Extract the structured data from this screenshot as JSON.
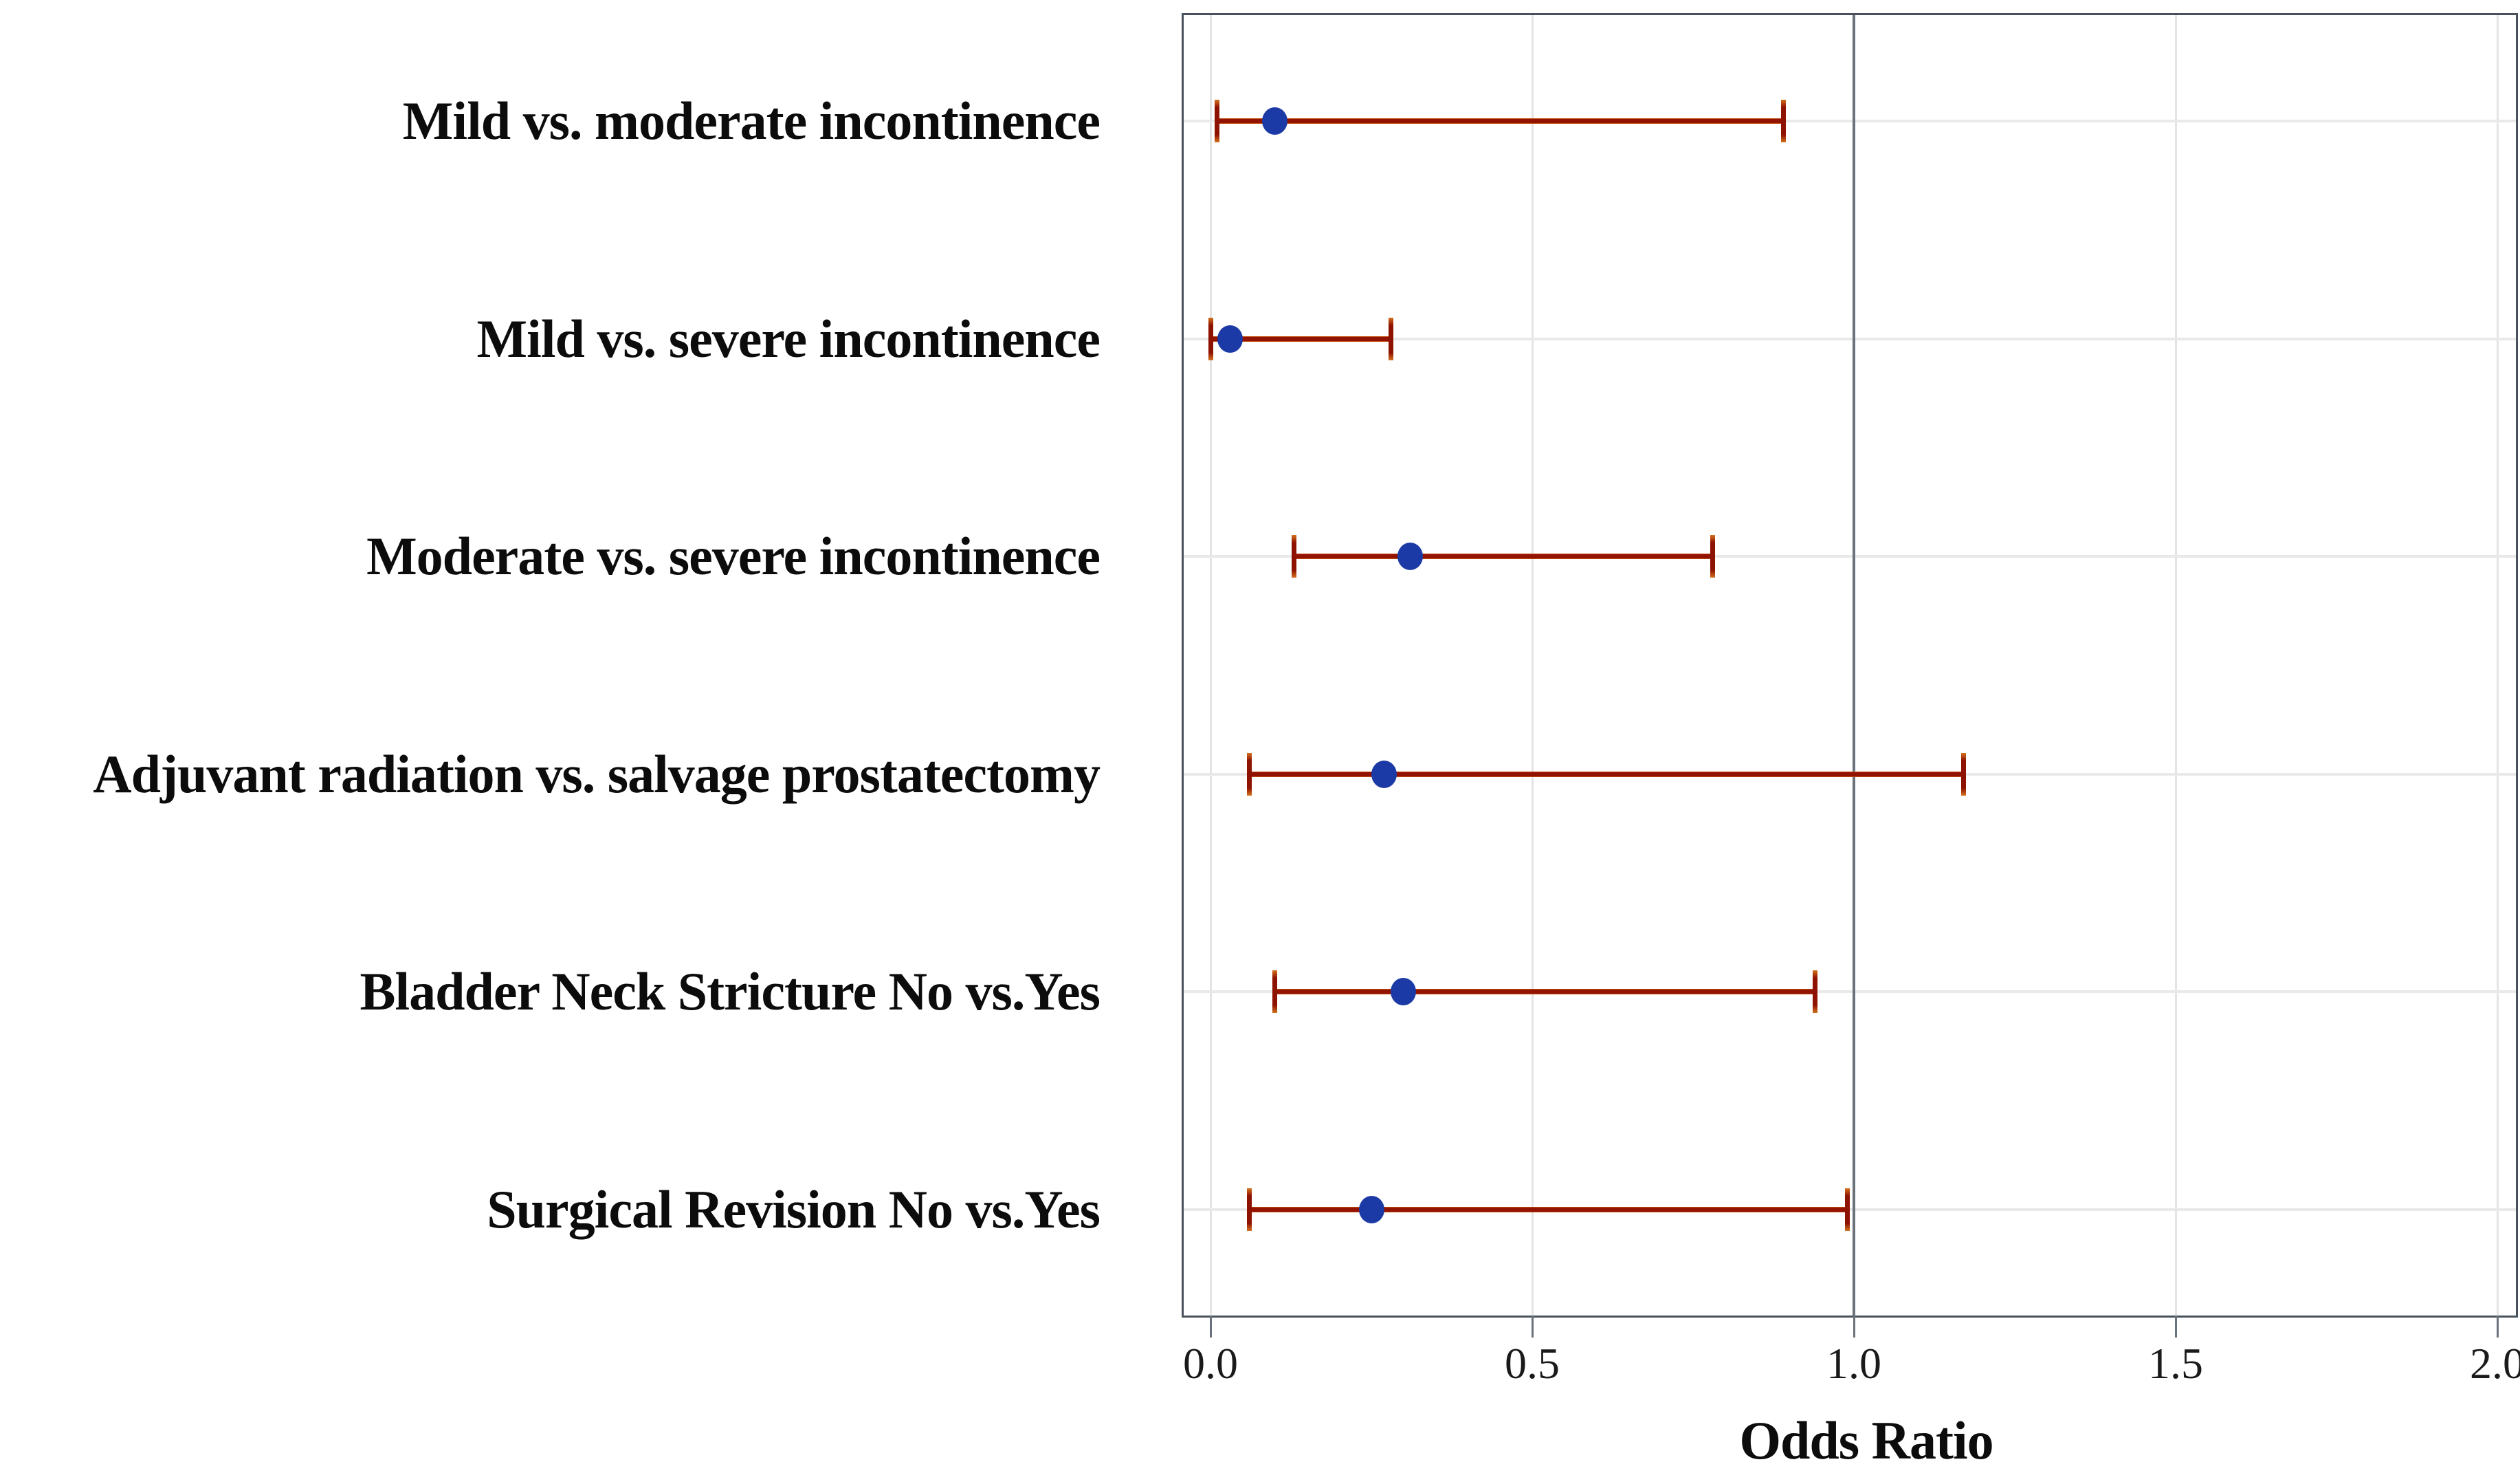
{
  "figure": {
    "type_hint": "forest plot of odds ratios with 95% confidence intervals",
    "background": "#ffffff"
  },
  "chart_data": {
    "type": "scatter",
    "subtype": "forest-plot-dot-with-error-bars",
    "title": "",
    "xlabel": "Odds Ratio",
    "ylabel": "",
    "xlim": [
      0,
      2
    ],
    "x_ticks": [
      0.0,
      0.5,
      1.0,
      1.5,
      2.0
    ],
    "x_tick_labels": [
      "0.0",
      "0.5",
      "1.0",
      "1.5",
      "2.0"
    ],
    "reference_line_x": 1.0,
    "grid": "light gray vertical gridlines at ticks and horizontal gridline at each row",
    "legend_position": "none",
    "categories": [
      "Mild vs. moderate incontinence",
      "Mild vs. severe incontinence",
      "Moderate vs. severe incontinence",
      "Adjuvant radiation vs. salvage prostatectomy",
      "Bladder Neck Stricture No vs.Yes",
      "Surgical Revision No vs.Yes"
    ],
    "rows": [
      {
        "label": "Mild vs. moderate incontinence",
        "odds_ratio": 0.1,
        "ci_low": 0.01,
        "ci_high": 0.89
      },
      {
        "label": "Mild vs. severe incontinence",
        "odds_ratio": 0.03,
        "ci_low": 0.0,
        "ci_high": 0.28
      },
      {
        "label": "Moderate vs. severe incontinence",
        "odds_ratio": 0.31,
        "ci_low": 0.13,
        "ci_high": 0.78
      },
      {
        "label": "Adjuvant radiation vs. salvage prostatectomy",
        "odds_ratio": 0.27,
        "ci_low": 0.06,
        "ci_high": 1.17
      },
      {
        "label": "Bladder Neck Stricture No vs.Yes",
        "odds_ratio": 0.3,
        "ci_low": 0.1,
        "ci_high": 0.94
      },
      {
        "label": "Surgical Revision No vs.Yes",
        "odds_ratio": 0.25,
        "ci_low": 0.06,
        "ci_high": 0.99
      }
    ],
    "colors": {
      "point": "#1c3aa5",
      "error_bar": "#921300",
      "error_bar_tip": "#d4731e",
      "reference_line": "#6a727b",
      "gridline": "#e6e6e6",
      "frame": "#49525c",
      "text": "#0c0c0c"
    }
  }
}
